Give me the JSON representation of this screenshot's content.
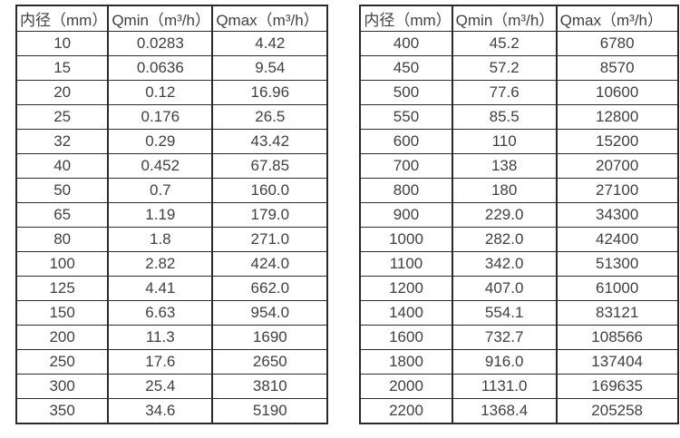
{
  "colors": {
    "border": "#2b2b2b",
    "text": "#404040",
    "background": "#ffffff"
  },
  "tables": [
    {
      "name": "flow-rate-table-small-diameters",
      "headers": [
        "内径（mm）",
        "Qmin（m³/h）",
        "Qmax（m³/h）"
      ],
      "rows": [
        [
          "10",
          "0.0283",
          "4.42"
        ],
        [
          "15",
          "0.0636",
          "9.54"
        ],
        [
          "20",
          "0.12",
          "16.96"
        ],
        [
          "25",
          "0.176",
          "26.5"
        ],
        [
          "32",
          "0.29",
          "43.42"
        ],
        [
          "40",
          "0.452",
          "67.85"
        ],
        [
          "50",
          "0.7",
          "160.0"
        ],
        [
          "65",
          "1.19",
          "179.0"
        ],
        [
          "80",
          "1.8",
          "271.0"
        ],
        [
          "100",
          "2.82",
          "424.0"
        ],
        [
          "125",
          "4.41",
          "662.0"
        ],
        [
          "150",
          "6.63",
          "954.0"
        ],
        [
          "200",
          "11.3",
          "1690"
        ],
        [
          "250",
          "17.6",
          "2650"
        ],
        [
          "300",
          "25.4",
          "3810"
        ],
        [
          "350",
          "34.6",
          "5190"
        ]
      ]
    },
    {
      "name": "flow-rate-table-large-diameters",
      "headers": [
        "内径（mm）",
        "Qmin（m³/h）",
        "Qmax（m³/h）"
      ],
      "rows": [
        [
          "400",
          "45.2",
          "6780"
        ],
        [
          "450",
          "57.2",
          "8570"
        ],
        [
          "500",
          "77.6",
          "10600"
        ],
        [
          "550",
          "85.5",
          "12800"
        ],
        [
          "600",
          "110",
          "15200"
        ],
        [
          "700",
          "138",
          "20700"
        ],
        [
          "800",
          "180",
          "27100"
        ],
        [
          "900",
          "229.0",
          "34300"
        ],
        [
          "1000",
          "282.0",
          "42400"
        ],
        [
          "1100",
          "342.0",
          "51300"
        ],
        [
          "1200",
          "407.0",
          "61000"
        ],
        [
          "1400",
          "554.1",
          "83121"
        ],
        [
          "1600",
          "732.7",
          "108566"
        ],
        [
          "1800",
          "916.0",
          "137404"
        ],
        [
          "2000",
          "1131.0",
          "169635"
        ],
        [
          "2200",
          "1368.4",
          "205258"
        ]
      ]
    }
  ]
}
